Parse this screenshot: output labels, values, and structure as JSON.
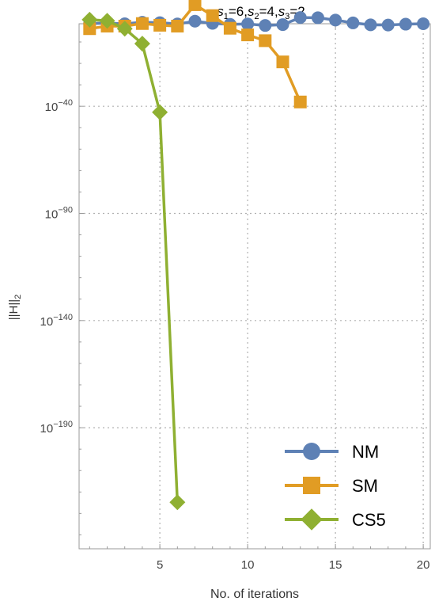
{
  "chart_data": {
    "type": "line",
    "title": "s1=6,s2=4,s3=2",
    "title_parts": [
      {
        "base": "s",
        "sub": "1",
        "rest": "=6,"
      },
      {
        "base": "s",
        "sub": "2",
        "rest": "=4,"
      },
      {
        "base": "s",
        "sub": "3",
        "rest": "=2"
      }
    ],
    "xlabel": "No. of iterations",
    "ylabel": "||H||2",
    "ylabel_main": "||H||",
    "ylabel_sub": "2",
    "y_scale": "log10",
    "xlim": [
      0.4,
      20.4
    ],
    "ylim_log10": [
      -246.5,
      -1.5
    ],
    "x_ticks": [
      5,
      10,
      15,
      20
    ],
    "x_tick_labels": [
      "5",
      "10",
      "15",
      "20"
    ],
    "y_ticks_log10": [
      -40,
      -90,
      -140,
      -190
    ],
    "y_tick_labels": [
      {
        "base": "10",
        "exp": "−40"
      },
      {
        "base": "10",
        "exp": "−90"
      },
      {
        "base": "10",
        "exp": "−140"
      },
      {
        "base": "10",
        "exp": "−190"
      }
    ],
    "grid": true,
    "legend_position": "bottom-right",
    "series": [
      {
        "name": "NM",
        "color": "#5e81b5",
        "marker": "circle",
        "x": [
          1,
          2,
          3,
          4,
          5,
          6,
          7,
          8,
          9,
          10,
          11,
          12,
          13,
          14,
          15,
          16,
          17,
          18,
          19,
          20
        ],
        "y_log10": [
          -1.4,
          -1.2,
          -1.5,
          -0.8,
          -1.0,
          -1.6,
          -0.3,
          -1.3,
          -1.8,
          -1.6,
          -2.3,
          -1.9,
          1.4,
          1.3,
          0.2,
          -1.1,
          -2.0,
          -2.1,
          -1.7,
          -1.5
        ]
      },
      {
        "name": "SM",
        "color": "#e19c24",
        "marker": "square",
        "x": [
          1,
          2,
          3,
          4,
          5,
          6,
          7,
          8,
          9,
          10,
          11,
          12,
          13
        ],
        "y_log10": [
          -3.8,
          -2.6,
          -2.6,
          -1.4,
          -2.2,
          -2.6,
          7.4,
          2.3,
          -3.6,
          -6.7,
          -9.4,
          -19.3,
          -38.0
        ]
      },
      {
        "name": "CS5",
        "color": "#8fb032",
        "marker": "diamond",
        "x": [
          1,
          2,
          3,
          4,
          5,
          6
        ],
        "y_log10": [
          0.4,
          -0.1,
          -3.8,
          -10.8,
          -42.8,
          -224.8
        ]
      }
    ]
  }
}
